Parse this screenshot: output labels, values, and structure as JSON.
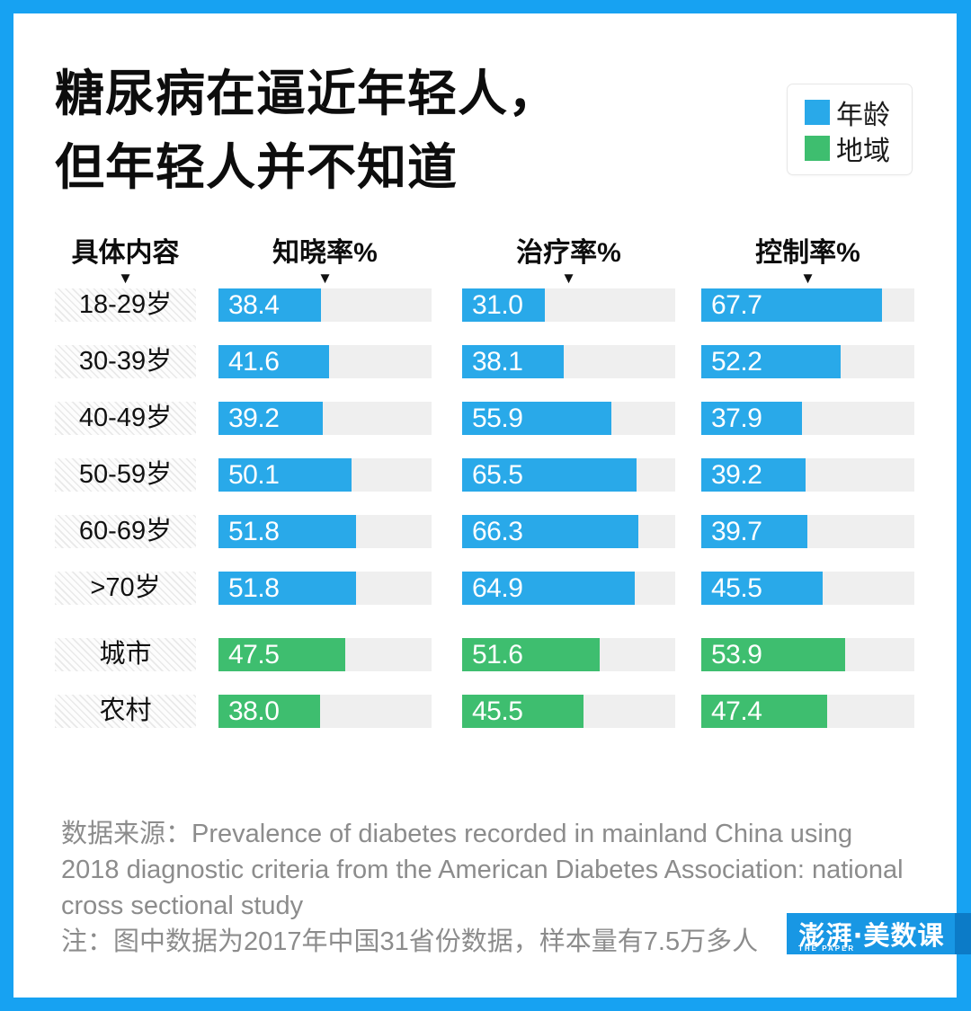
{
  "title": {
    "line1": "糖尿病在逼近年轻人，",
    "line2": "但年轻人并不知道"
  },
  "columns": {
    "row_header": "具体内容",
    "metric1": "知晓率%",
    "metric2": "治疗率%",
    "metric3": "控制率%"
  },
  "chart_data": {
    "type": "bar",
    "orientation": "horizontal",
    "title": "糖尿病在逼近年轻人，但年轻人并不知道",
    "metrics": [
      "知晓率%",
      "治疗率%",
      "控制率%"
    ],
    "row_header": "具体内容",
    "value_range": [
      0,
      80
    ],
    "grid": false,
    "legend_position": "top-right",
    "groups": [
      {
        "name": "年龄",
        "color": "#29A9E9",
        "rows": [
          {
            "label": "18-29岁",
            "values": [
              "38.4",
              "31.0",
              "67.7"
            ]
          },
          {
            "label": "30-39岁",
            "values": [
              "41.6",
              "38.1",
              "52.2"
            ]
          },
          {
            "label": "40-49岁",
            "values": [
              "39.2",
              "55.9",
              "37.9"
            ]
          },
          {
            "label": "50-59岁",
            "values": [
              "50.1",
              "65.5",
              "39.2"
            ]
          },
          {
            "label": "60-69岁",
            "values": [
              "51.8",
              "66.3",
              "39.7"
            ]
          },
          {
            "label": ">70岁",
            "values": [
              "51.8",
              "64.9",
              "45.5"
            ]
          }
        ]
      },
      {
        "name": "地域",
        "color": "#3EBE6F",
        "rows": [
          {
            "label": "城市",
            "values": [
              "47.5",
              "51.6",
              "53.9"
            ]
          },
          {
            "label": "农村",
            "values": [
              "38.0",
              "45.5",
              "47.4"
            ]
          }
        ]
      }
    ]
  },
  "footer": {
    "source": "数据来源：Prevalence of diabetes recorded in mainland China using 2018 diagnostic criteria from the American Diabetes Association: national cross sectional study",
    "note": "注：图中数据为2017年中国31省份数据，样本量有7.5万多人"
  },
  "logo": {
    "text": "澎湃·美数课",
    "subtext": "THE PAPER",
    "bg": "#1897E4",
    "bg_dark": "#0C7BC7"
  },
  "colors": {
    "page_accent": "#17A2F2",
    "bar_age": "#29A9E9",
    "bar_region": "#3EBE6F",
    "bar_track": "#EFEFEF",
    "footer_text": "#8C8C8C"
  },
  "icons": {
    "sort_arrow": "▼"
  }
}
